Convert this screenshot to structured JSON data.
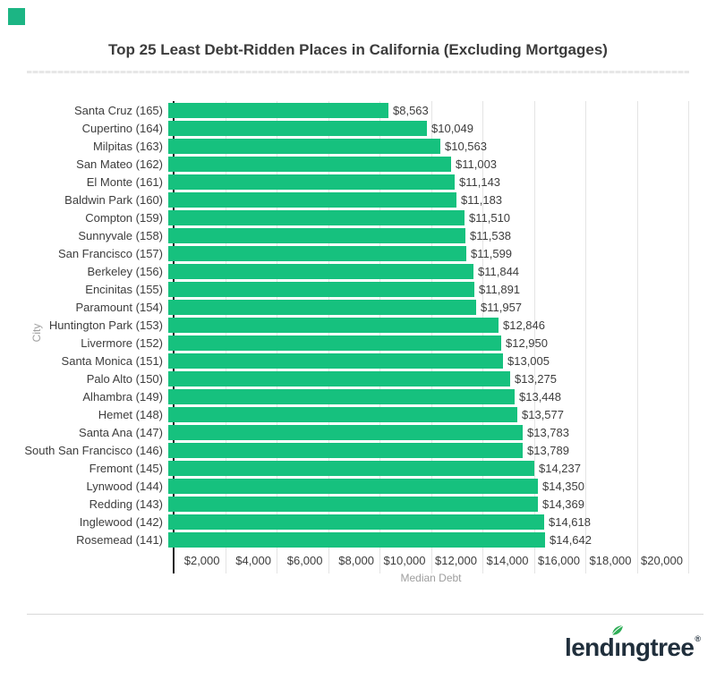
{
  "page": {
    "corner_color": "#1cb584"
  },
  "chart_data": {
    "type": "bar",
    "orientation": "horizontal",
    "title": "Top 25 Least Debt-Ridden Places in California (Excluding Mortgages)",
    "xlabel": "Median Debt",
    "ylabel": "City",
    "xlim": [
      0,
      20000
    ],
    "grid": true,
    "legend": "none",
    "bar_color": "#16c17e",
    "tick_values": [
      2000,
      4000,
      6000,
      8000,
      10000,
      12000,
      14000,
      16000,
      18000,
      20000
    ],
    "tick_labels": [
      "$2,000",
      "$4,000",
      "$6,000",
      "$8,000",
      "$10,000",
      "$12,000",
      "$14,000",
      "$16,000",
      "$18,000",
      "$20,000"
    ],
    "categories": [
      "Santa Cruz (165)",
      "Cupertino (164)",
      "Milpitas (163)",
      "San Mateo (162)",
      "El Monte (161)",
      "Baldwin Park (160)",
      "Compton (159)",
      "Sunnyvale (158)",
      "San Francisco (157)",
      "Berkeley (156)",
      "Encinitas (155)",
      "Paramount (154)",
      "Huntington Park (153)",
      "Livermore (152)",
      "Santa Monica (151)",
      "Palo Alto (150)",
      "Alhambra (149)",
      "Hemet (148)",
      "Santa Ana (147)",
      "South San Francisco (146)",
      "Fremont (145)",
      "Lynwood (144)",
      "Redding (143)",
      "Inglewood (142)",
      "Rosemead (141)"
    ],
    "values": [
      8563,
      10049,
      10563,
      11003,
      11143,
      11183,
      11510,
      11538,
      11599,
      11844,
      11891,
      11957,
      12846,
      12950,
      13005,
      13275,
      13448,
      13577,
      13783,
      13789,
      14237,
      14350,
      14369,
      14618,
      14642
    ],
    "value_labels": [
      "$8,563",
      "$10,049",
      "$10,563",
      "$11,003",
      "$11,143",
      "$11,183",
      "$11,510",
      "$11,538",
      "$11,599",
      "$11,844",
      "$11,891",
      "$11,957",
      "$12,846",
      "$12,950",
      "$13,005",
      "$13,275",
      "$13,448",
      "$13,577",
      "$13,783",
      "$13,789",
      "$14,237",
      "$14,350",
      "$14,369",
      "$14,618",
      "$14,642"
    ]
  },
  "footer": {
    "brand_color": "#202f3c",
    "leaf_color": "#2fae57",
    "logo": {
      "part1": "lend",
      "part2": "ı",
      "part3": "ngtree",
      "reg": "®"
    }
  }
}
